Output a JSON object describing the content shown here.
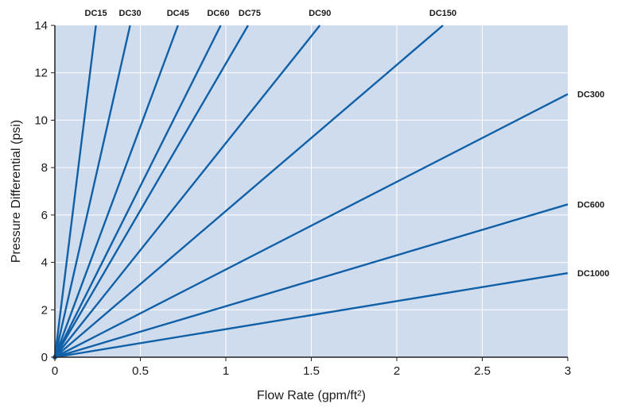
{
  "chart_data": {
    "type": "line",
    "xlabel": "Flow Rate (gpm/ft²)",
    "ylabel": "Pressure Differential (psi)",
    "xlim": [
      0,
      3
    ],
    "ylim": [
      0,
      14
    ],
    "x_ticks": [
      "0",
      "0.5",
      "1",
      "1.5",
      "2",
      "2.5",
      "3"
    ],
    "y_ticks": [
      "0",
      "2",
      "4",
      "6",
      "8",
      "10",
      "12",
      "14"
    ],
    "grid": true,
    "background_color": "#cfdcee",
    "line_color": "#1060a8",
    "series": [
      {
        "name": "DC15",
        "x": [
          0,
          0.24
        ],
        "y": [
          0,
          14
        ]
      },
      {
        "name": "DC30",
        "x": [
          0,
          0.44
        ],
        "y": [
          0,
          14
        ]
      },
      {
        "name": "DC45",
        "x": [
          0,
          0.72
        ],
        "y": [
          0,
          14
        ]
      },
      {
        "name": "DC60",
        "x": [
          0,
          0.97
        ],
        "y": [
          0,
          14
        ]
      },
      {
        "name": "DC75",
        "x": [
          0,
          1.13
        ],
        "y": [
          0,
          14
        ]
      },
      {
        "name": "DC90",
        "x": [
          0,
          1.55
        ],
        "y": [
          0,
          14
        ]
      },
      {
        "name": "DC150",
        "x": [
          0,
          2.27
        ],
        "y": [
          0,
          14
        ]
      },
      {
        "name": "DC300",
        "x": [
          0,
          3
        ],
        "y": [
          0,
          11.1
        ]
      },
      {
        "name": "DC600",
        "x": [
          0,
          3
        ],
        "y": [
          0,
          6.45
        ]
      },
      {
        "name": "DC1000",
        "x": [
          0,
          3
        ],
        "y": [
          0,
          3.55
        ]
      }
    ]
  }
}
